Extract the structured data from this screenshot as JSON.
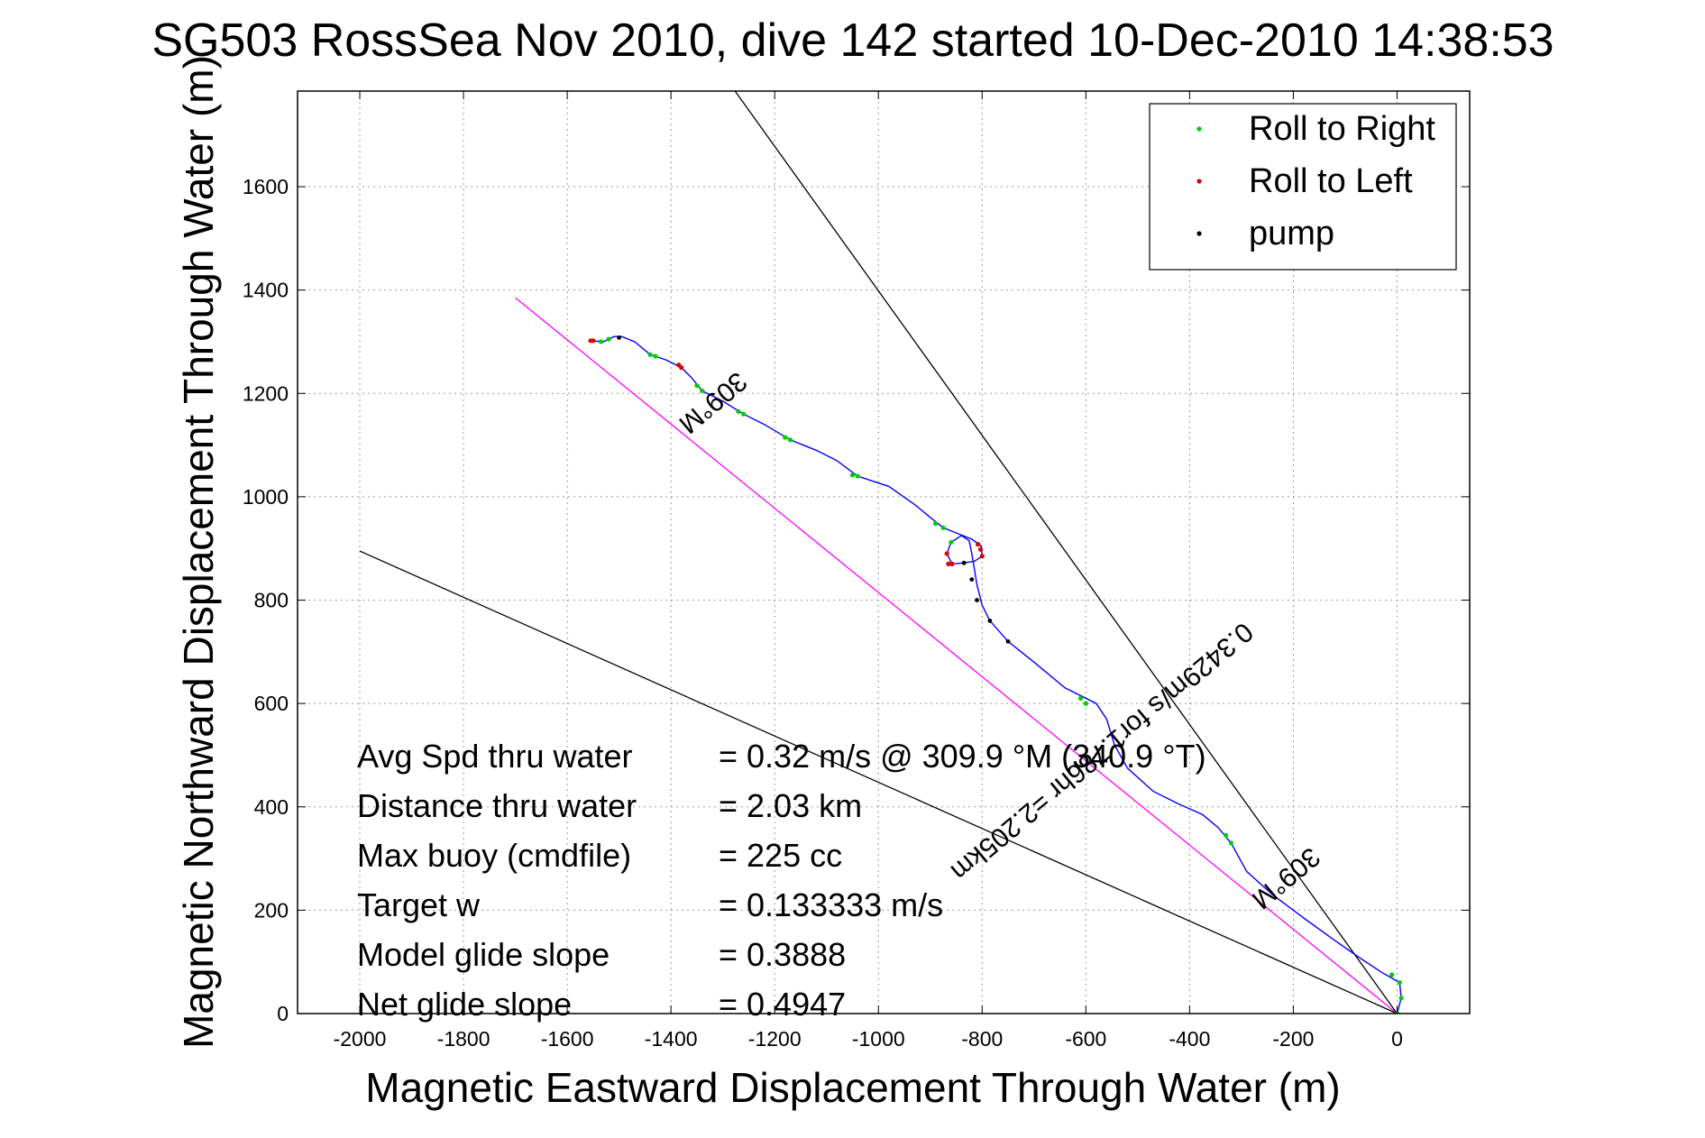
{
  "chart_data": {
    "type": "line",
    "title": "SG503 RossSea Nov 2010, dive 142 started 10-Dec-2010 14:38:53",
    "xlabel": "Magnetic Eastward Displacement Through Water (m)",
    "ylabel": "Magnetic Northward Displacement Through Water (m)",
    "xlim": [
      -2120,
      140
    ],
    "ylim": [
      0,
      1785
    ],
    "x_ticks": [
      -2000,
      -1800,
      -1600,
      -1400,
      -1200,
      -1000,
      -800,
      -600,
      -400,
      -200,
      0
    ],
    "y_ticks": [
      0,
      200,
      400,
      600,
      800,
      1000,
      1200,
      1400,
      1600
    ],
    "grid": true,
    "legend_position": "top-right",
    "legend": [
      {
        "label": "Roll to Right",
        "color": "#00cc00"
      },
      {
        "label": "Roll to Left",
        "color": "#dd0000"
      },
      {
        "label": "pump",
        "color": "#000000"
      }
    ],
    "track": {
      "color": "#0000ff",
      "points": [
        [
          0,
          0
        ],
        [
          8,
          30
        ],
        [
          5,
          60
        ],
        [
          -30,
          80
        ],
        [
          -75,
          110
        ],
        [
          -125,
          145
        ],
        [
          -180,
          185
        ],
        [
          -240,
          230
        ],
        [
          -290,
          275
        ],
        [
          -320,
          330
        ],
        [
          -345,
          360
        ],
        [
          -375,
          385
        ],
        [
          -420,
          405
        ],
        [
          -470,
          430
        ],
        [
          -520,
          475
        ],
        [
          -545,
          520
        ],
        [
          -560,
          570
        ],
        [
          -580,
          600
        ],
        [
          -640,
          630
        ],
        [
          -700,
          680
        ],
        [
          -750,
          720
        ],
        [
          -785,
          760
        ],
        [
          -800,
          790
        ],
        [
          -810,
          830
        ],
        [
          -815,
          860
        ],
        [
          -820,
          890
        ],
        [
          -825,
          915
        ],
        [
          -840,
          925
        ],
        [
          -860,
          912
        ],
        [
          -868,
          890
        ],
        [
          -858,
          870
        ],
        [
          -835,
          872
        ],
        [
          -815,
          875
        ],
        [
          -800,
          885
        ],
        [
          -802,
          905
        ],
        [
          -820,
          918
        ],
        [
          -850,
          930
        ],
        [
          -875,
          940
        ],
        [
          -900,
          960
        ],
        [
          -930,
          985
        ],
        [
          -980,
          1020
        ],
        [
          -1040,
          1040
        ],
        [
          -1080,
          1070
        ],
        [
          -1120,
          1090
        ],
        [
          -1170,
          1110
        ],
        [
          -1220,
          1140
        ],
        [
          -1260,
          1160
        ],
        [
          -1300,
          1185
        ],
        [
          -1340,
          1205
        ],
        [
          -1360,
          1230
        ],
        [
          -1380,
          1250
        ],
        [
          -1410,
          1265
        ],
        [
          -1440,
          1275
        ],
        [
          -1470,
          1300
        ],
        [
          -1495,
          1310
        ],
        [
          -1510,
          1310
        ],
        [
          -1530,
          1300
        ],
        [
          -1555,
          1302
        ]
      ],
      "roll_right": [
        [
          0,
          0
        ],
        [
          8,
          30
        ],
        [
          5,
          60
        ],
        [
          -10,
          75
        ],
        [
          -320,
          330
        ],
        [
          -330,
          345
        ],
        [
          -600,
          600
        ],
        [
          -610,
          610
        ],
        [
          -860,
          912
        ],
        [
          -875,
          940
        ],
        [
          -890,
          948
        ],
        [
          -1040,
          1040
        ],
        [
          -1050,
          1042
        ],
        [
          -1170,
          1110
        ],
        [
          -1180,
          1115
        ],
        [
          -1260,
          1160
        ],
        [
          -1270,
          1165
        ],
        [
          -1340,
          1205
        ],
        [
          -1350,
          1215
        ],
        [
          -1430,
          1272
        ],
        [
          -1440,
          1275
        ],
        [
          -1520,
          1305
        ],
        [
          -1535,
          1300
        ]
      ],
      "roll_left": [
        [
          -868,
          890
        ],
        [
          -865,
          870
        ],
        [
          -858,
          870
        ],
        [
          -800,
          885
        ],
        [
          -803,
          898
        ],
        [
          -808,
          908
        ],
        [
          -1380,
          1250
        ],
        [
          -1385,
          1255
        ],
        [
          -1550,
          1302
        ],
        [
          -1555,
          1302
        ]
      ],
      "pump": [
        [
          -1500,
          1308
        ],
        [
          -835,
          872
        ],
        [
          -820,
          840
        ],
        [
          -810,
          800
        ],
        [
          -785,
          760
        ],
        [
          -750,
          720
        ]
      ]
    },
    "reference_lines": [
      {
        "from": [
          0,
          0
        ],
        "to": [
          -1700,
          1385
        ],
        "color": "#ff00ff"
      },
      {
        "from": [
          0,
          0
        ],
        "to": [
          -1280,
          1790
        ],
        "color": "#000000"
      },
      {
        "from": [
          0,
          0
        ],
        "to": [
          -2000,
          895
        ],
        "color": "#000000"
      }
    ],
    "annotations": [
      {
        "text": "309°M",
        "x": -1330,
        "y": 1195,
        "rotation": 140
      },
      {
        "text": "0.3429m/s for1.786hr =2.205km",
        "x": -580,
        "y": 520,
        "rotation": 140
      },
      {
        "text": "309°M",
        "x": -225,
        "y": 275,
        "rotation": 140
      }
    ],
    "stats": [
      {
        "label": "Avg Spd thru water",
        "value": "=  0.32 m/s @ 309.9 °M (340.9 °T)"
      },
      {
        "label": "Distance thru water",
        "value": "=  2.03 km"
      },
      {
        "label": "Max buoy (cmdfile)",
        "value": "= 225 cc"
      },
      {
        "label": "Target w",
        "value": "= 0.133333 m/s"
      },
      {
        "label": "Model glide slope",
        "value": "= 0.3888"
      },
      {
        "label": "Net glide slope",
        "value": "= 0.4947"
      }
    ]
  }
}
